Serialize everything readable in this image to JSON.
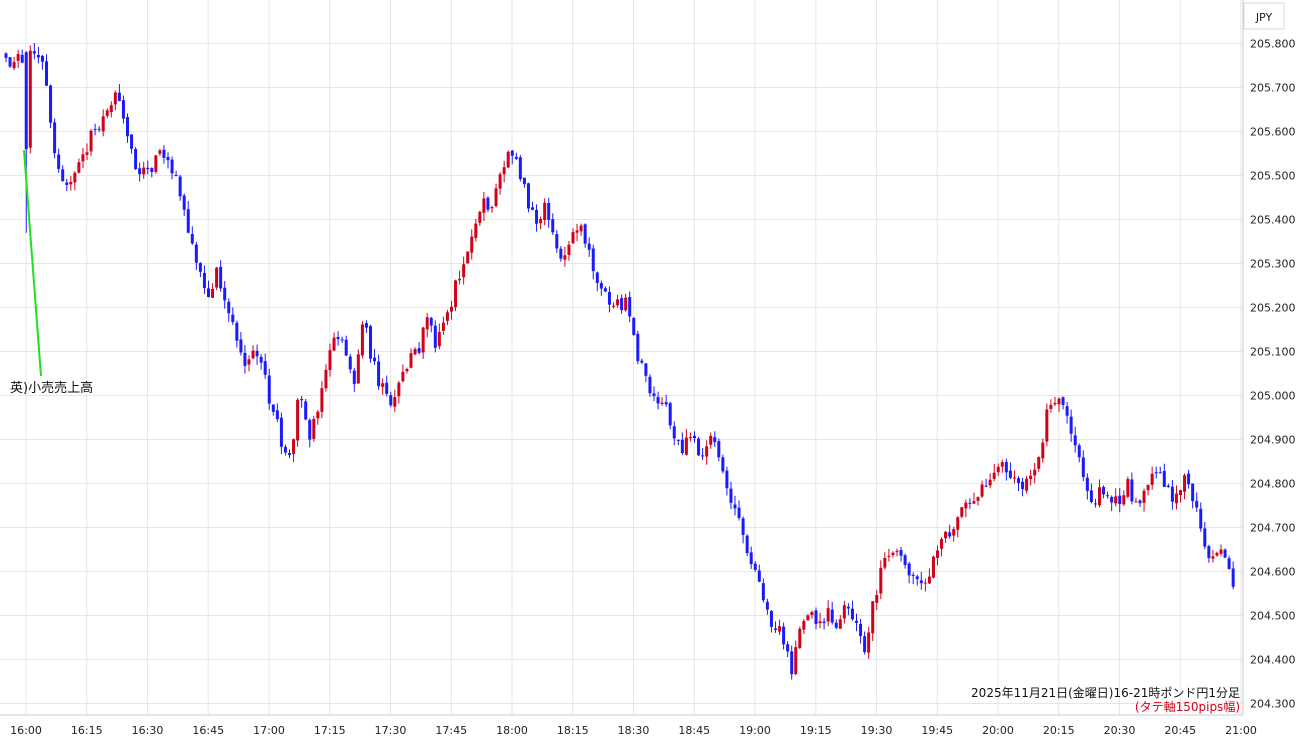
{
  "chart_data": {
    "type": "candlestick",
    "currency_label": "JPY",
    "caption": "2025年11月21日(金曜日)16-21時ポンド円1分足",
    "caption_note": "(タテ軸150pips幅)",
    "annotation": "英)小売売上高",
    "ylim": [
      204.3,
      205.85
    ],
    "y_ticks": [
      "205.800",
      "205.700",
      "205.600",
      "205.500",
      "205.400",
      "205.300",
      "205.200",
      "205.100",
      "205.000",
      "204.900",
      "204.800",
      "204.700",
      "204.600",
      "204.500",
      "204.400",
      "204.300"
    ],
    "x_ticks": [
      "16:00",
      "16:15",
      "16:30",
      "16:45",
      "17:00",
      "17:15",
      "17:30",
      "17:45",
      "18:00",
      "18:15",
      "18:30",
      "18:45",
      "19:00",
      "19:15",
      "19:30",
      "19:45",
      "20:00",
      "20:15",
      "20:30",
      "20:45",
      "21:00"
    ],
    "grid": true,
    "up_color": "#d0021b",
    "down_color": "#1a1aff",
    "annotation_line_color": "#22dd22",
    "path": [
      [
        0,
        205.76
      ],
      [
        1,
        205.78
      ],
      [
        2,
        205.77
      ],
      [
        3,
        205.56
      ],
      [
        4,
        205.5
      ],
      [
        5,
        205.47
      ],
      [
        6,
        205.54
      ],
      [
        7,
        205.58
      ],
      [
        8,
        205.62
      ],
      [
        9,
        205.66
      ],
      [
        10,
        205.69
      ],
      [
        11,
        205.6
      ],
      [
        12,
        205.53
      ],
      [
        13,
        205.5
      ],
      [
        14,
        205.53
      ],
      [
        15,
        205.56
      ],
      [
        16,
        205.52
      ],
      [
        17,
        205.45
      ],
      [
        18,
        205.36
      ],
      [
        19,
        205.28
      ],
      [
        20,
        205.22
      ],
      [
        21,
        205.28
      ],
      [
        22,
        205.2
      ],
      [
        23,
        205.15
      ],
      [
        24,
        205.08
      ],
      [
        25,
        205.1
      ],
      [
        26,
        205.05
      ],
      [
        27,
        204.97
      ],
      [
        28,
        204.9
      ],
      [
        29,
        204.87
      ],
      [
        30,
        205.0
      ],
      [
        31,
        204.9
      ],
      [
        32,
        204.95
      ],
      [
        33,
        205.08
      ],
      [
        34,
        205.15
      ],
      [
        35,
        205.1
      ],
      [
        36,
        205.03
      ],
      [
        37,
        205.17
      ],
      [
        38,
        205.08
      ],
      [
        39,
        205.02
      ],
      [
        40,
        204.98
      ],
      [
        41,
        205.05
      ],
      [
        42,
        205.08
      ],
      [
        43,
        205.1
      ],
      [
        44,
        205.17
      ],
      [
        45,
        205.12
      ],
      [
        46,
        205.16
      ],
      [
        47,
        205.24
      ],
      [
        48,
        205.28
      ],
      [
        49,
        205.35
      ],
      [
        50,
        205.45
      ],
      [
        51,
        205.43
      ],
      [
        52,
        205.5
      ],
      [
        53,
        205.56
      ],
      [
        54,
        205.52
      ],
      [
        55,
        205.45
      ],
      [
        56,
        205.38
      ],
      [
        57,
        205.44
      ],
      [
        58,
        205.35
      ],
      [
        59,
        205.3
      ],
      [
        60,
        205.37
      ],
      [
        61,
        205.38
      ],
      [
        62,
        205.32
      ],
      [
        63,
        205.23
      ],
      [
        64,
        205.22
      ],
      [
        65,
        205.2
      ],
      [
        66,
        205.21
      ],
      [
        67,
        205.1
      ],
      [
        68,
        205.03
      ],
      [
        69,
        204.98
      ],
      [
        70,
        205.0
      ],
      [
        71,
        204.92
      ],
      [
        72,
        204.87
      ],
      [
        73,
        204.92
      ],
      [
        74,
        204.85
      ],
      [
        75,
        204.92
      ],
      [
        76,
        204.85
      ],
      [
        77,
        204.78
      ],
      [
        78,
        204.75
      ],
      [
        79,
        204.65
      ],
      [
        80,
        204.6
      ],
      [
        81,
        204.53
      ],
      [
        82,
        204.48
      ],
      [
        83,
        204.45
      ],
      [
        84,
        204.38
      ],
      [
        85,
        204.48
      ],
      [
        86,
        204.5
      ],
      [
        87,
        204.47
      ],
      [
        88,
        204.5
      ],
      [
        89,
        204.48
      ],
      [
        90,
        204.52
      ],
      [
        91,
        204.48
      ],
      [
        92,
        204.42
      ],
      [
        93,
        204.53
      ],
      [
        94,
        204.62
      ],
      [
        95,
        204.65
      ],
      [
        96,
        204.62
      ],
      [
        97,
        204.6
      ],
      [
        98,
        204.57
      ],
      [
        99,
        204.6
      ],
      [
        100,
        204.64
      ],
      [
        101,
        204.68
      ],
      [
        102,
        204.72
      ],
      [
        103,
        204.75
      ],
      [
        104,
        204.76
      ],
      [
        105,
        204.8
      ],
      [
        106,
        204.83
      ],
      [
        107,
        204.86
      ],
      [
        108,
        204.82
      ],
      [
        109,
        204.79
      ],
      [
        110,
        204.8
      ],
      [
        111,
        204.85
      ],
      [
        112,
        204.95
      ],
      [
        113,
        204.98
      ],
      [
        114,
        204.97
      ],
      [
        115,
        204.9
      ],
      [
        116,
        204.82
      ],
      [
        117,
        204.75
      ],
      [
        118,
        204.79
      ],
      [
        119,
        204.77
      ],
      [
        120,
        204.76
      ],
      [
        121,
        204.8
      ],
      [
        122,
        204.73
      ],
      [
        123,
        204.8
      ],
      [
        124,
        204.82
      ],
      [
        125,
        204.8
      ],
      [
        126,
        204.76
      ],
      [
        127,
        204.82
      ],
      [
        128,
        204.78
      ],
      [
        129,
        204.68
      ],
      [
        130,
        204.62
      ],
      [
        131,
        204.65
      ],
      [
        132,
        204.6
      ],
      [
        133,
        204.56
      ],
      [
        134,
        204.52
      ],
      [
        135,
        204.6
      ],
      [
        136,
        204.55
      ]
    ]
  }
}
